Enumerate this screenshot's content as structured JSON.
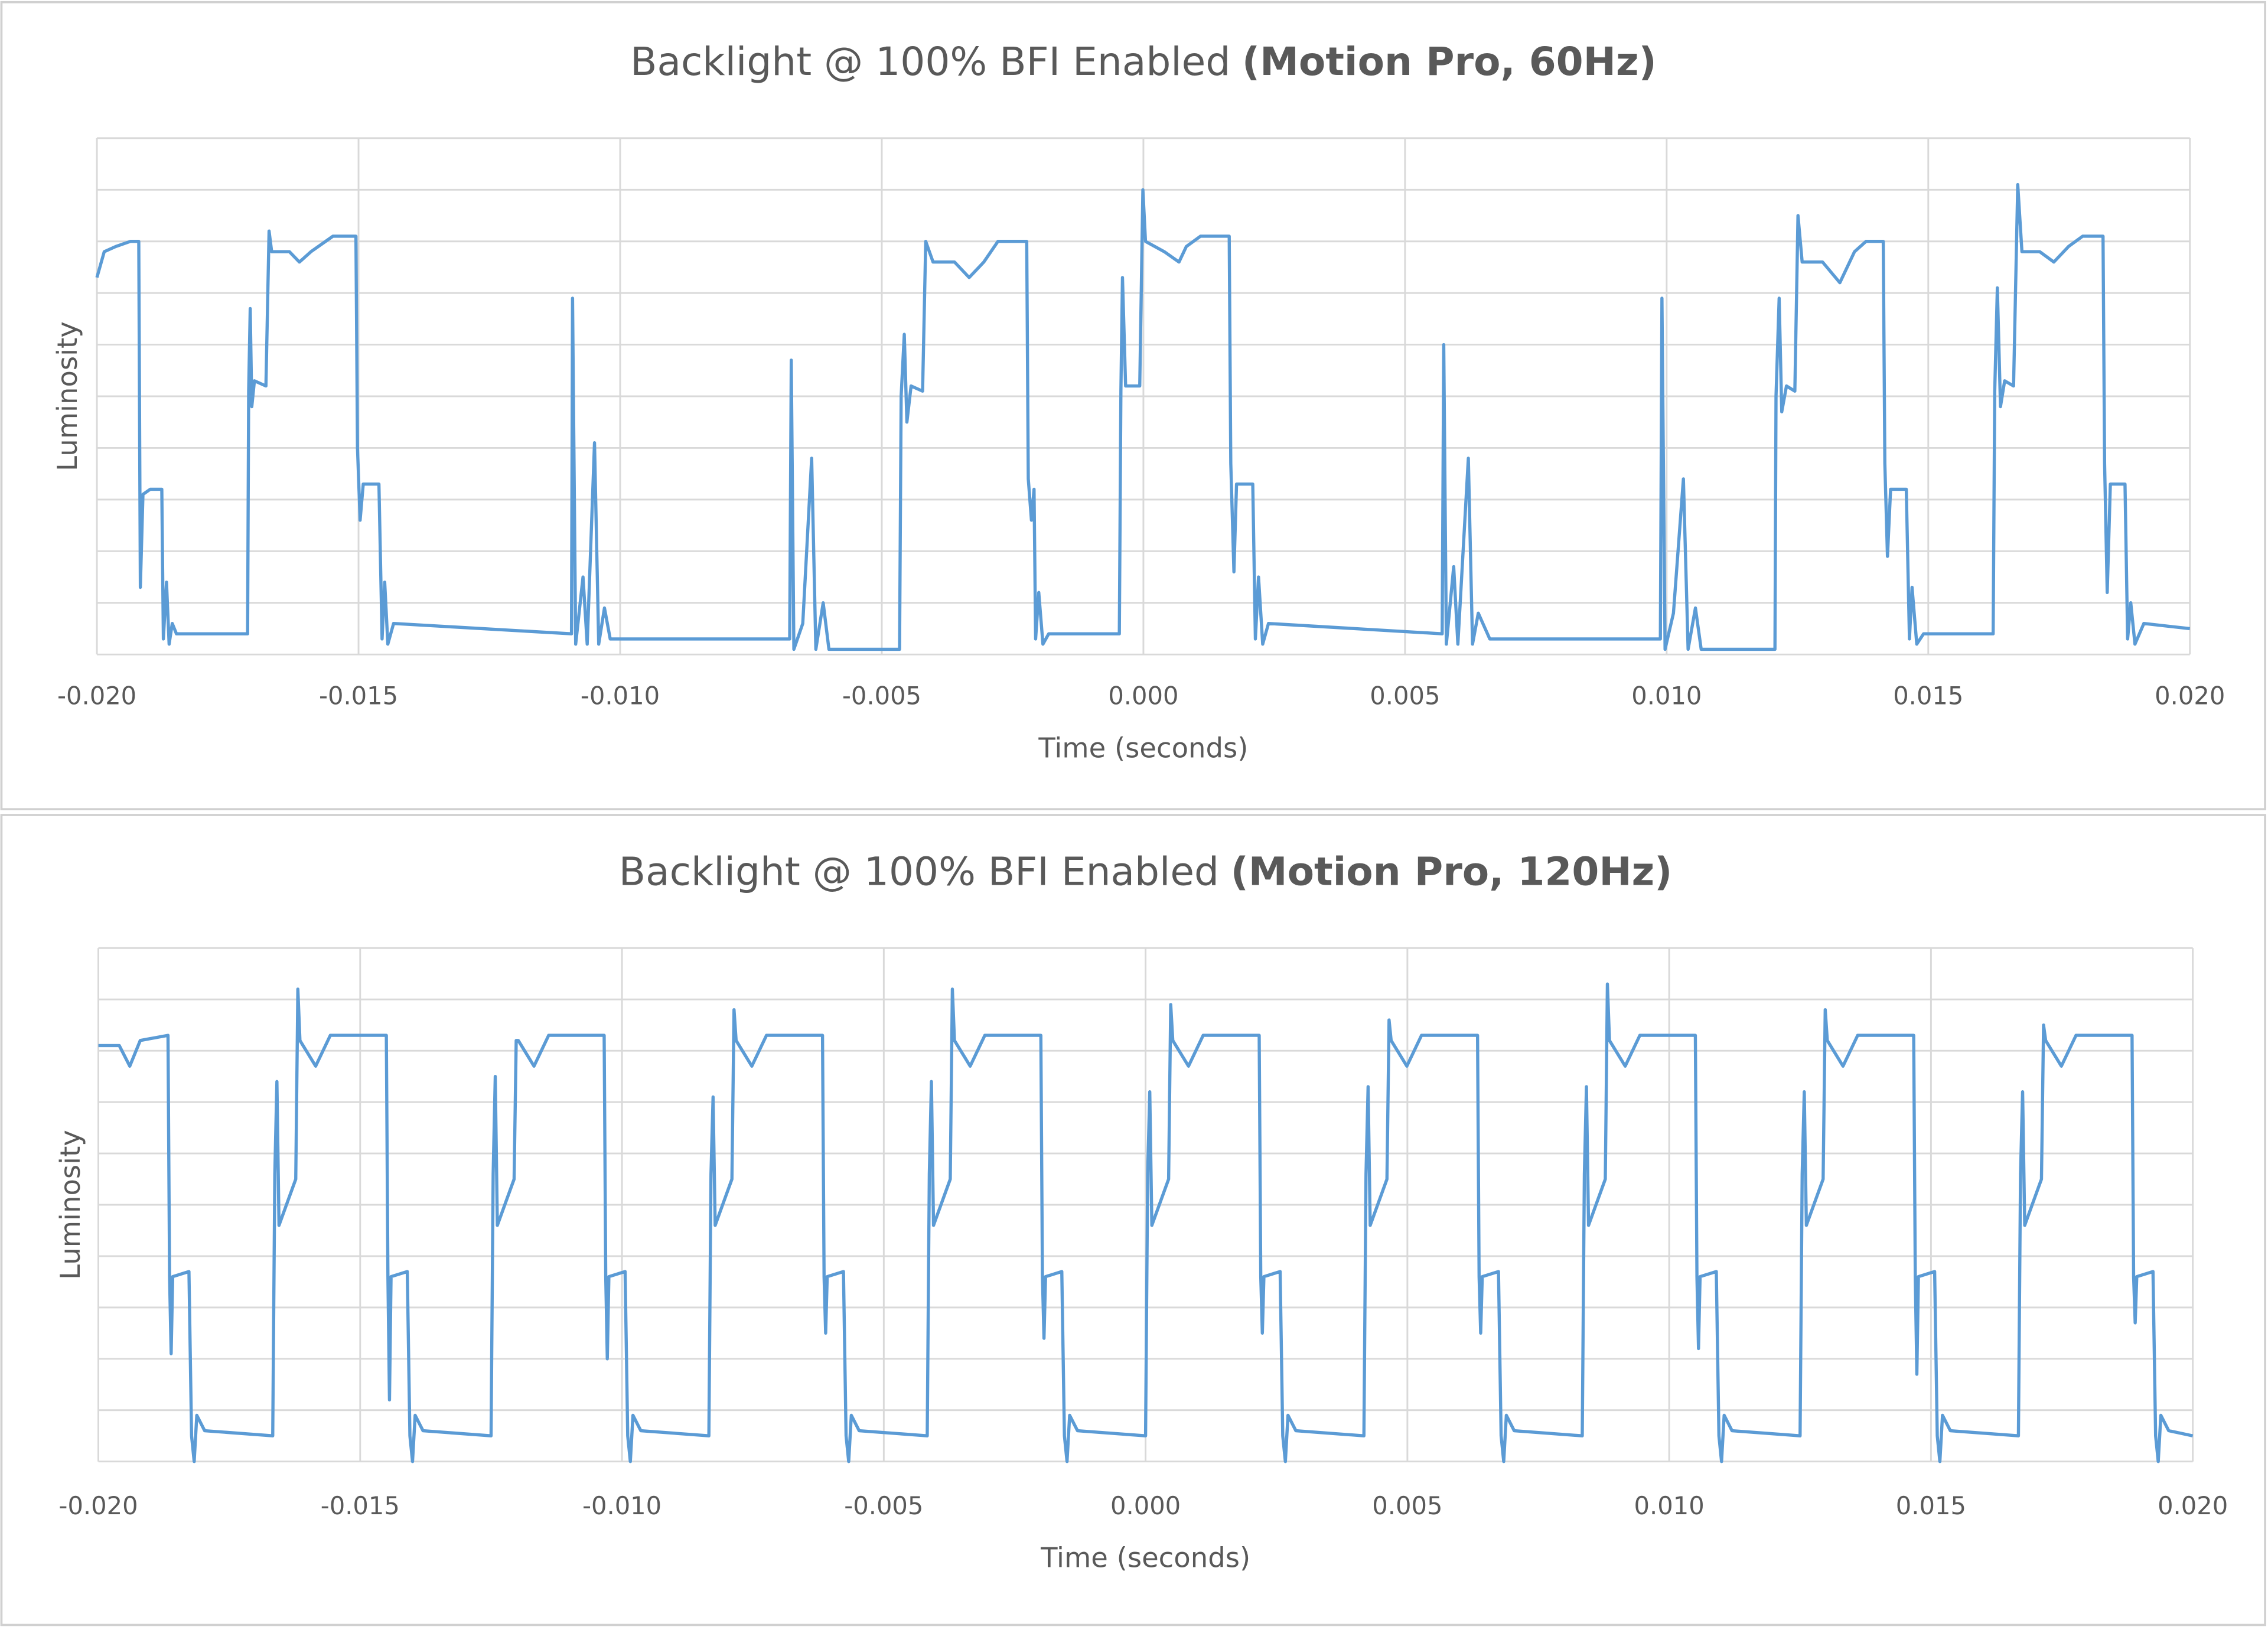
{
  "chart_data": [
    {
      "type": "line",
      "title": [
        "Backlight @ 100% BFI Enabled",
        "(Motion Pro, 60Hz)"
      ],
      "xlabel": "Time (seconds)",
      "ylabel": "Luminosity",
      "color": "#5b9bd5",
      "grid": true,
      "ytick_labels": false,
      "xlim": [
        -0.02,
        0.02
      ],
      "xticks": [
        {
          "value": -0.02,
          "label": "-0.020"
        },
        {
          "value": -0.015,
          "label": "-0.015"
        },
        {
          "value": -0.01,
          "label": "-0.010"
        },
        {
          "value": -0.005,
          "label": "-0.005"
        },
        {
          "value": 0,
          "label": "0.000"
        },
        {
          "value": 0.005,
          "label": "0.005"
        },
        {
          "value": 0.01,
          "label": "0.010"
        },
        {
          "value": 0.015,
          "label": "0.015"
        },
        {
          "value": 0.02,
          "label": "0.020"
        }
      ],
      "ylim": [
        0,
        10
      ],
      "yticks": [
        0,
        1,
        2,
        3,
        4,
        5,
        6,
        7,
        8,
        9,
        10
      ],
      "x": [
        -0.02,
        -0.01986,
        -0.01964,
        -0.01936,
        -0.0192,
        -0.01917,
        -0.01912,
        -0.01898,
        -0.01876,
        -0.01873,
        -0.01867,
        -0.01862,
        -0.01856,
        -0.01848,
        -0.01712,
        -0.0171,
        -0.01707,
        -0.01704,
        -0.01699,
        -0.01677,
        -0.01671,
        -0.01666,
        -0.01632,
        -0.01613,
        -0.01591,
        -0.01549,
        -0.01505,
        -0.01502,
        -0.01497,
        -0.01491,
        -0.01461,
        -0.01455,
        -0.0145,
        -0.01444,
        -0.01433,
        -0.01093,
        -0.01091,
        -0.01085,
        -0.01071,
        -0.01063,
        -0.01049,
        -0.01041,
        -0.0103,
        -0.01019,
        -0.00997,
        -0.00676,
        -0.00673,
        -0.00668,
        -0.00651,
        -0.00634,
        -0.00626,
        -0.00612,
        -0.00601,
        -0.00582,
        -0.00466,
        -0.00463,
        -0.00457,
        -0.00452,
        -0.00444,
        -0.00422,
        -0.00416,
        -0.00402,
        -0.00361,
        -0.00333,
        -0.00305,
        -0.00278,
        -0.00223,
        -0.0022,
        -0.00214,
        -0.00209,
        -0.00206,
        -0.002,
        -0.00192,
        -0.00181,
        -0.00046,
        -0.00043,
        -0.0004,
        -0.00034,
        -7e-05,
        -1e-05,
        4e-05,
        0.0004,
        0.00068,
        0.00082,
        0.00109,
        0.00164,
        0.00167,
        0.00173,
        0.00178,
        0.00209,
        0.00214,
        0.0022,
        0.00228,
        0.00239,
        0.00571,
        0.00574,
        0.00579,
        0.00593,
        0.00601,
        0.00621,
        0.00629,
        0.0064,
        0.00662,
        0.00988,
        0.00991,
        0.00997,
        0.01013,
        0.01032,
        0.01041,
        0.01055,
        0.01066,
        0.01091,
        0.01207,
        0.01209,
        0.01215,
        0.0122,
        0.01229,
        0.01245,
        0.01251,
        0.01259,
        0.01298,
        0.01331,
        0.01359,
        0.01381,
        0.01414,
        0.01417,
        0.01422,
        0.01428,
        0.01458,
        0.01464,
        0.01469,
        0.01478,
        0.01491,
        0.01624,
        0.01627,
        0.01632,
        0.01638,
        0.01646,
        0.01663,
        0.01671,
        0.01679,
        0.01713,
        0.0174,
        0.01768,
        0.01795,
        0.01834,
        0.01837,
        0.01842,
        0.01848,
        0.01876,
        0.01881,
        0.01887,
        0.01895,
        0.01912,
        0.02
      ],
      "values": [
        7.3,
        7.8,
        7.9,
        8.0,
        8.0,
        1.3,
        3.1,
        3.2,
        3.2,
        0.3,
        1.4,
        0.2,
        0.6,
        0.4,
        0.4,
        5.1,
        6.7,
        4.8,
        5.3,
        5.2,
        8.2,
        7.8,
        7.8,
        7.6,
        7.8,
        8.1,
        8.1,
        4.0,
        2.6,
        3.3,
        3.3,
        0.3,
        1.4,
        0.2,
        0.6,
        0.4,
        6.9,
        0.2,
        1.5,
        0.2,
        4.1,
        0.2,
        0.9,
        0.3,
        0.3,
        0.3,
        5.7,
        0.1,
        0.6,
        3.8,
        0.1,
        1.0,
        0.1,
        0.1,
        0.1,
        5.0,
        6.2,
        4.5,
        5.2,
        5.1,
        8.0,
        7.6,
        7.6,
        7.3,
        7.6,
        8.0,
        8.0,
        3.4,
        2.6,
        3.2,
        0.3,
        1.2,
        0.2,
        0.4,
        0.4,
        5.1,
        7.3,
        5.2,
        5.2,
        9.0,
        8.0,
        7.8,
        7.6,
        7.9,
        8.1,
        8.1,
        3.7,
        1.6,
        3.3,
        3.3,
        0.3,
        1.5,
        0.2,
        0.6,
        0.4,
        6.0,
        0.2,
        1.7,
        0.2,
        3.8,
        0.2,
        0.8,
        0.3,
        0.3,
        6.9,
        0.1,
        0.8,
        3.4,
        0.1,
        0.9,
        0.1,
        0.1,
        0.1,
        5.0,
        6.9,
        4.7,
        5.2,
        5.1,
        8.5,
        7.6,
        7.6,
        7.2,
        7.8,
        8.0,
        8.0,
        3.7,
        1.9,
        3.2,
        3.2,
        0.3,
        1.3,
        0.2,
        0.4,
        0.4,
        5.1,
        7.1,
        4.8,
        5.3,
        5.2,
        9.1,
        7.8,
        7.8,
        7.6,
        7.9,
        8.1,
        8.1,
        3.7,
        1.2,
        3.3,
        3.3,
        0.3,
        1.0,
        0.2,
        0.6,
        0.5
      ]
    },
    {
      "type": "line",
      "title": [
        "Backlight @ 100% BFI Enabled",
        "(Motion Pro, 120Hz)"
      ],
      "xlabel": "Time (seconds)",
      "ylabel": "Luminosity",
      "color": "#5b9bd5",
      "grid": true,
      "ytick_labels": false,
      "xlim": [
        -0.02,
        0.02
      ],
      "xticks": [
        {
          "value": -0.02,
          "label": "-0.020"
        },
        {
          "value": -0.015,
          "label": "-0.015"
        },
        {
          "value": -0.01,
          "label": "-0.010"
        },
        {
          "value": -0.005,
          "label": "-0.005"
        },
        {
          "value": 0,
          "label": "0.000"
        },
        {
          "value": 0.005,
          "label": "0.005"
        },
        {
          "value": 0.01,
          "label": "0.010"
        },
        {
          "value": 0.015,
          "label": "0.015"
        },
        {
          "value": 0.02,
          "label": "0.020"
        }
      ],
      "ylim": [
        0,
        10
      ],
      "yticks": [
        0,
        1,
        2,
        3,
        4,
        5,
        6,
        7,
        8,
        9,
        10
      ],
      "x": [
        -0.02,
        -0.0196,
        -0.0194,
        -0.0192,
        -0.01867,
        -0.01864,
        -0.01861,
        -0.01858,
        -0.01827,
        -0.01822,
        -0.01817,
        -0.01812,
        -0.01797,
        -0.01667,
        -0.01663,
        -0.01659,
        -0.01655,
        -0.01623,
        -0.01619,
        -0.01615,
        -0.01585,
        -0.01557,
        -0.0145,
        -0.01447,
        -0.01444,
        -0.01441,
        -0.0141,
        -0.01405,
        -0.014,
        -0.01395,
        -0.0138,
        -0.0125,
        -0.01246,
        -0.01242,
        -0.01238,
        -0.01206,
        -0.01202,
        -0.01198,
        -0.01168,
        -0.0114,
        -0.01034,
        -0.01031,
        -0.01028,
        -0.01025,
        -0.00994,
        -0.00989,
        -0.00984,
        -0.00979,
        -0.00964,
        -0.00834,
        -0.0083,
        -0.00826,
        -0.00822,
        -0.0079,
        -0.00786,
        -0.00782,
        -0.00752,
        -0.00724,
        -0.00617,
        -0.00614,
        -0.00611,
        -0.00608,
        -0.00577,
        -0.00572,
        -0.00567,
        -0.00562,
        -0.00547,
        -0.00417,
        -0.00413,
        -0.00409,
        -0.00405,
        -0.00373,
        -0.00369,
        -0.00365,
        -0.00335,
        -0.00307,
        -0.002,
        -0.00197,
        -0.00194,
        -0.00191,
        -0.0016,
        -0.00155,
        -0.0015,
        -0.00145,
        -0.0013,
        0.0,
        4e-05,
        8e-05,
        0.00012,
        0.00044,
        0.00048,
        0.00052,
        0.00082,
        0.0011,
        0.00217,
        0.0022,
        0.00223,
        0.00226,
        0.00257,
        0.00262,
        0.00267,
        0.00272,
        0.00287,
        0.00417,
        0.00421,
        0.00425,
        0.00429,
        0.00461,
        0.00465,
        0.00469,
        0.00499,
        0.00527,
        0.00634,
        0.00637,
        0.0064,
        0.00643,
        0.00674,
        0.00679,
        0.00684,
        0.00689,
        0.00704,
        0.00834,
        0.00838,
        0.00842,
        0.00846,
        0.00878,
        0.00882,
        0.00886,
        0.00916,
        0.00944,
        0.0105,
        0.01053,
        0.01056,
        0.01059,
        0.0109,
        0.01095,
        0.011,
        0.01105,
        0.0112,
        0.0125,
        0.01254,
        0.01258,
        0.01262,
        0.01294,
        0.01298,
        0.01302,
        0.01332,
        0.0136,
        0.01467,
        0.0147,
        0.01473,
        0.01476,
        0.01507,
        0.01512,
        0.01517,
        0.01522,
        0.01537,
        0.01667,
        0.01671,
        0.01675,
        0.01679,
        0.01711,
        0.01715,
        0.01719,
        0.01749,
        0.01777,
        0.01884,
        0.01887,
        0.0189,
        0.01893,
        0.01924,
        0.01929,
        0.01934,
        0.01939,
        0.01954,
        0.02
      ],
      "values": [
        8.1,
        8.1,
        7.7,
        8.2,
        8.3,
        3.6,
        2.1,
        3.6,
        3.7,
        0.5,
        0.0,
        0.9,
        0.6,
        0.5,
        5.6,
        7.4,
        4.6,
        5.5,
        9.2,
        8.2,
        7.7,
        8.3,
        8.3,
        3.6,
        1.2,
        3.6,
        3.7,
        0.5,
        0.0,
        0.9,
        0.6,
        0.5,
        5.6,
        7.5,
        4.6,
        5.5,
        8.2,
        8.2,
        7.7,
        8.3,
        8.3,
        3.6,
        2.0,
        3.6,
        3.7,
        0.5,
        0.0,
        0.9,
        0.6,
        0.5,
        5.6,
        7.1,
        4.6,
        5.5,
        8.8,
        8.2,
        7.7,
        8.3,
        8.3,
        3.6,
        2.5,
        3.6,
        3.7,
        0.5,
        0.0,
        0.9,
        0.6,
        0.5,
        5.6,
        7.4,
        4.6,
        5.5,
        9.2,
        8.2,
        7.7,
        8.3,
        8.3,
        3.6,
        2.4,
        3.6,
        3.7,
        0.5,
        0.0,
        0.9,
        0.6,
        0.5,
        5.6,
        7.2,
        4.6,
        5.5,
        8.9,
        8.2,
        7.7,
        8.3,
        8.3,
        3.6,
        2.5,
        3.6,
        3.7,
        0.5,
        0.0,
        0.9,
        0.6,
        0.5,
        5.6,
        7.3,
        4.6,
        5.5,
        8.6,
        8.2,
        7.7,
        8.3,
        8.3,
        3.6,
        2.5,
        3.6,
        3.7,
        0.5,
        0.0,
        0.9,
        0.6,
        0.5,
        5.6,
        7.3,
        4.6,
        5.5,
        9.3,
        8.2,
        7.7,
        8.3,
        8.3,
        3.6,
        2.2,
        3.6,
        3.7,
        0.5,
        0.0,
        0.9,
        0.6,
        0.5,
        5.6,
        7.2,
        4.6,
        5.5,
        8.8,
        8.2,
        7.7,
        8.3,
        8.3,
        3.6,
        1.7,
        3.6,
        3.7,
        0.5,
        0.0,
        0.9,
        0.6,
        0.5,
        5.6,
        7.2,
        4.6,
        5.5,
        8.5,
        8.2,
        7.7,
        8.3,
        8.3,
        3.6,
        2.7,
        3.6,
        3.7,
        0.5,
        0.0,
        0.9,
        0.6,
        0.5
      ]
    }
  ]
}
